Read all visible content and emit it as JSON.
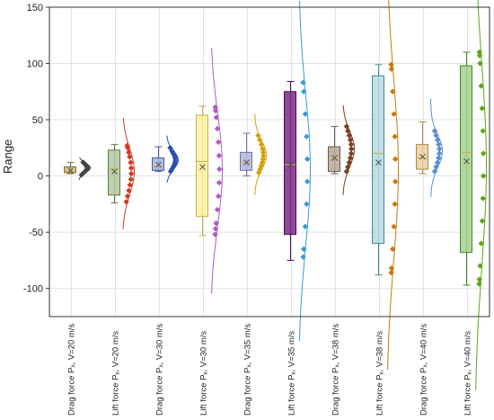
{
  "chart_data": {
    "type": "box",
    "ylabel": "Range",
    "ylim": [
      -125,
      150
    ],
    "yticks": [
      -100,
      -50,
      0,
      50,
      100,
      150
    ],
    "grid": true,
    "legend": "none",
    "categories": [
      "Drag force Pₓ, V=20 m/s",
      "Lift force Pᵧ, V=20 m/s",
      "Drag force Pₓ, V=30 m/s",
      "Lift force Pᵧ, V=30 m/s",
      "Drag force Pₓ, V=35 m/s",
      "Lift force Pᵧ, V=35 m/s",
      "Drag force Pₓ, V=38 m/s",
      "Lift force Pᵧ, V=38 m/s",
      "Drag force Pₓ, V=40 m/s",
      "Lift force Pᵧ, V=40 m/s"
    ],
    "boxes": [
      {
        "min": 2,
        "q1": 3,
        "median": 5,
        "q3": 8,
        "max": 12,
        "mean": 5,
        "points": [
          1,
          3,
          5,
          6,
          7,
          8,
          9,
          10,
          11,
          12
        ]
      },
      {
        "min": -24,
        "q1": -17,
        "median": 6,
        "q3": 23,
        "max": 28,
        "mean": 4,
        "points": [
          -23,
          -18,
          -13,
          -8,
          -3,
          2,
          7,
          12,
          17,
          21,
          25,
          27
        ]
      },
      {
        "min": 4,
        "q1": 5,
        "median": 8,
        "q3": 16,
        "max": 26,
        "mean": 10,
        "points": [
          4,
          6,
          8,
          10,
          12,
          14,
          16,
          18,
          20,
          22,
          25
        ]
      },
      {
        "min": -53,
        "q1": -36,
        "median": 13,
        "q3": 54,
        "max": 62,
        "mean": 8,
        "points": [
          -52,
          -47,
          -42,
          -30,
          -18,
          -6,
          6,
          18,
          30,
          42,
          52,
          58,
          61
        ]
      },
      {
        "min": 0,
        "q1": 5,
        "median": 12,
        "q3": 21,
        "max": 38,
        "mean": 12,
        "points": [
          3,
          6,
          9,
          12,
          15,
          18,
          21,
          24,
          28,
          32,
          36
        ]
      },
      {
        "min": -75,
        "q1": -52,
        "median": 10,
        "q3": 75,
        "max": 84,
        "mean": 10,
        "points": [
          -72,
          -65,
          -45,
          -25,
          -5,
          15,
          35,
          55,
          75,
          83
        ]
      },
      {
        "min": 2,
        "q1": 4,
        "median": 15,
        "q3": 26,
        "max": 44,
        "mean": 16,
        "points": [
          4,
          8,
          12,
          16,
          20,
          24,
          28,
          32,
          36,
          40,
          44
        ]
      },
      {
        "min": -88,
        "q1": -60,
        "median": 20,
        "q3": 89,
        "max": 99,
        "mean": 12,
        "points": [
          -86,
          -82,
          -65,
          -45,
          -25,
          -5,
          15,
          35,
          55,
          75,
          95,
          99
        ]
      },
      {
        "min": 2,
        "q1": 6,
        "median": 16,
        "q3": 28,
        "max": 48,
        "mean": 17,
        "points": [
          4,
          8,
          12,
          16,
          20,
          24,
          28,
          32,
          36,
          40
        ]
      },
      {
        "min": -97,
        "q1": -68,
        "median": 21,
        "q3": 98,
        "max": 110,
        "mean": 13,
        "points": [
          -96,
          -92,
          -80,
          -60,
          -40,
          -20,
          0,
          20,
          40,
          60,
          80,
          100,
          107,
          110
        ]
      }
    ]
  },
  "style": {
    "box_colors": [
      "#d4c07a",
      "#b5c8a2",
      "#a8b0da",
      "#fdf0a0",
      "#b0b9d9",
      "#7a2a85",
      "#b9a998",
      "#b6dbe0",
      "#e9d0a4",
      "#a6d18e"
    ],
    "box_edges": [
      "#7a6a2a",
      "#5a7a45",
      "#4a55a0",
      "#c8b24a",
      "#6a74a8",
      "#4a0a55",
      "#6a5a48",
      "#3c8a95",
      "#b08a45",
      "#3d8a25"
    ],
    "point_colors": [
      "#444444",
      "#d23b22",
      "#2a4fb0",
      "#b05bc5",
      "#d2a20d",
      "#3a9ad6",
      "#7a3e22",
      "#c47a0e",
      "#5a8fd6",
      "#5aa618"
    ],
    "mean_marker_color": "#555555",
    "median_line_color": "#c8b24a",
    "grid_color": "#e3e3e3",
    "axis_color": "#333333"
  }
}
